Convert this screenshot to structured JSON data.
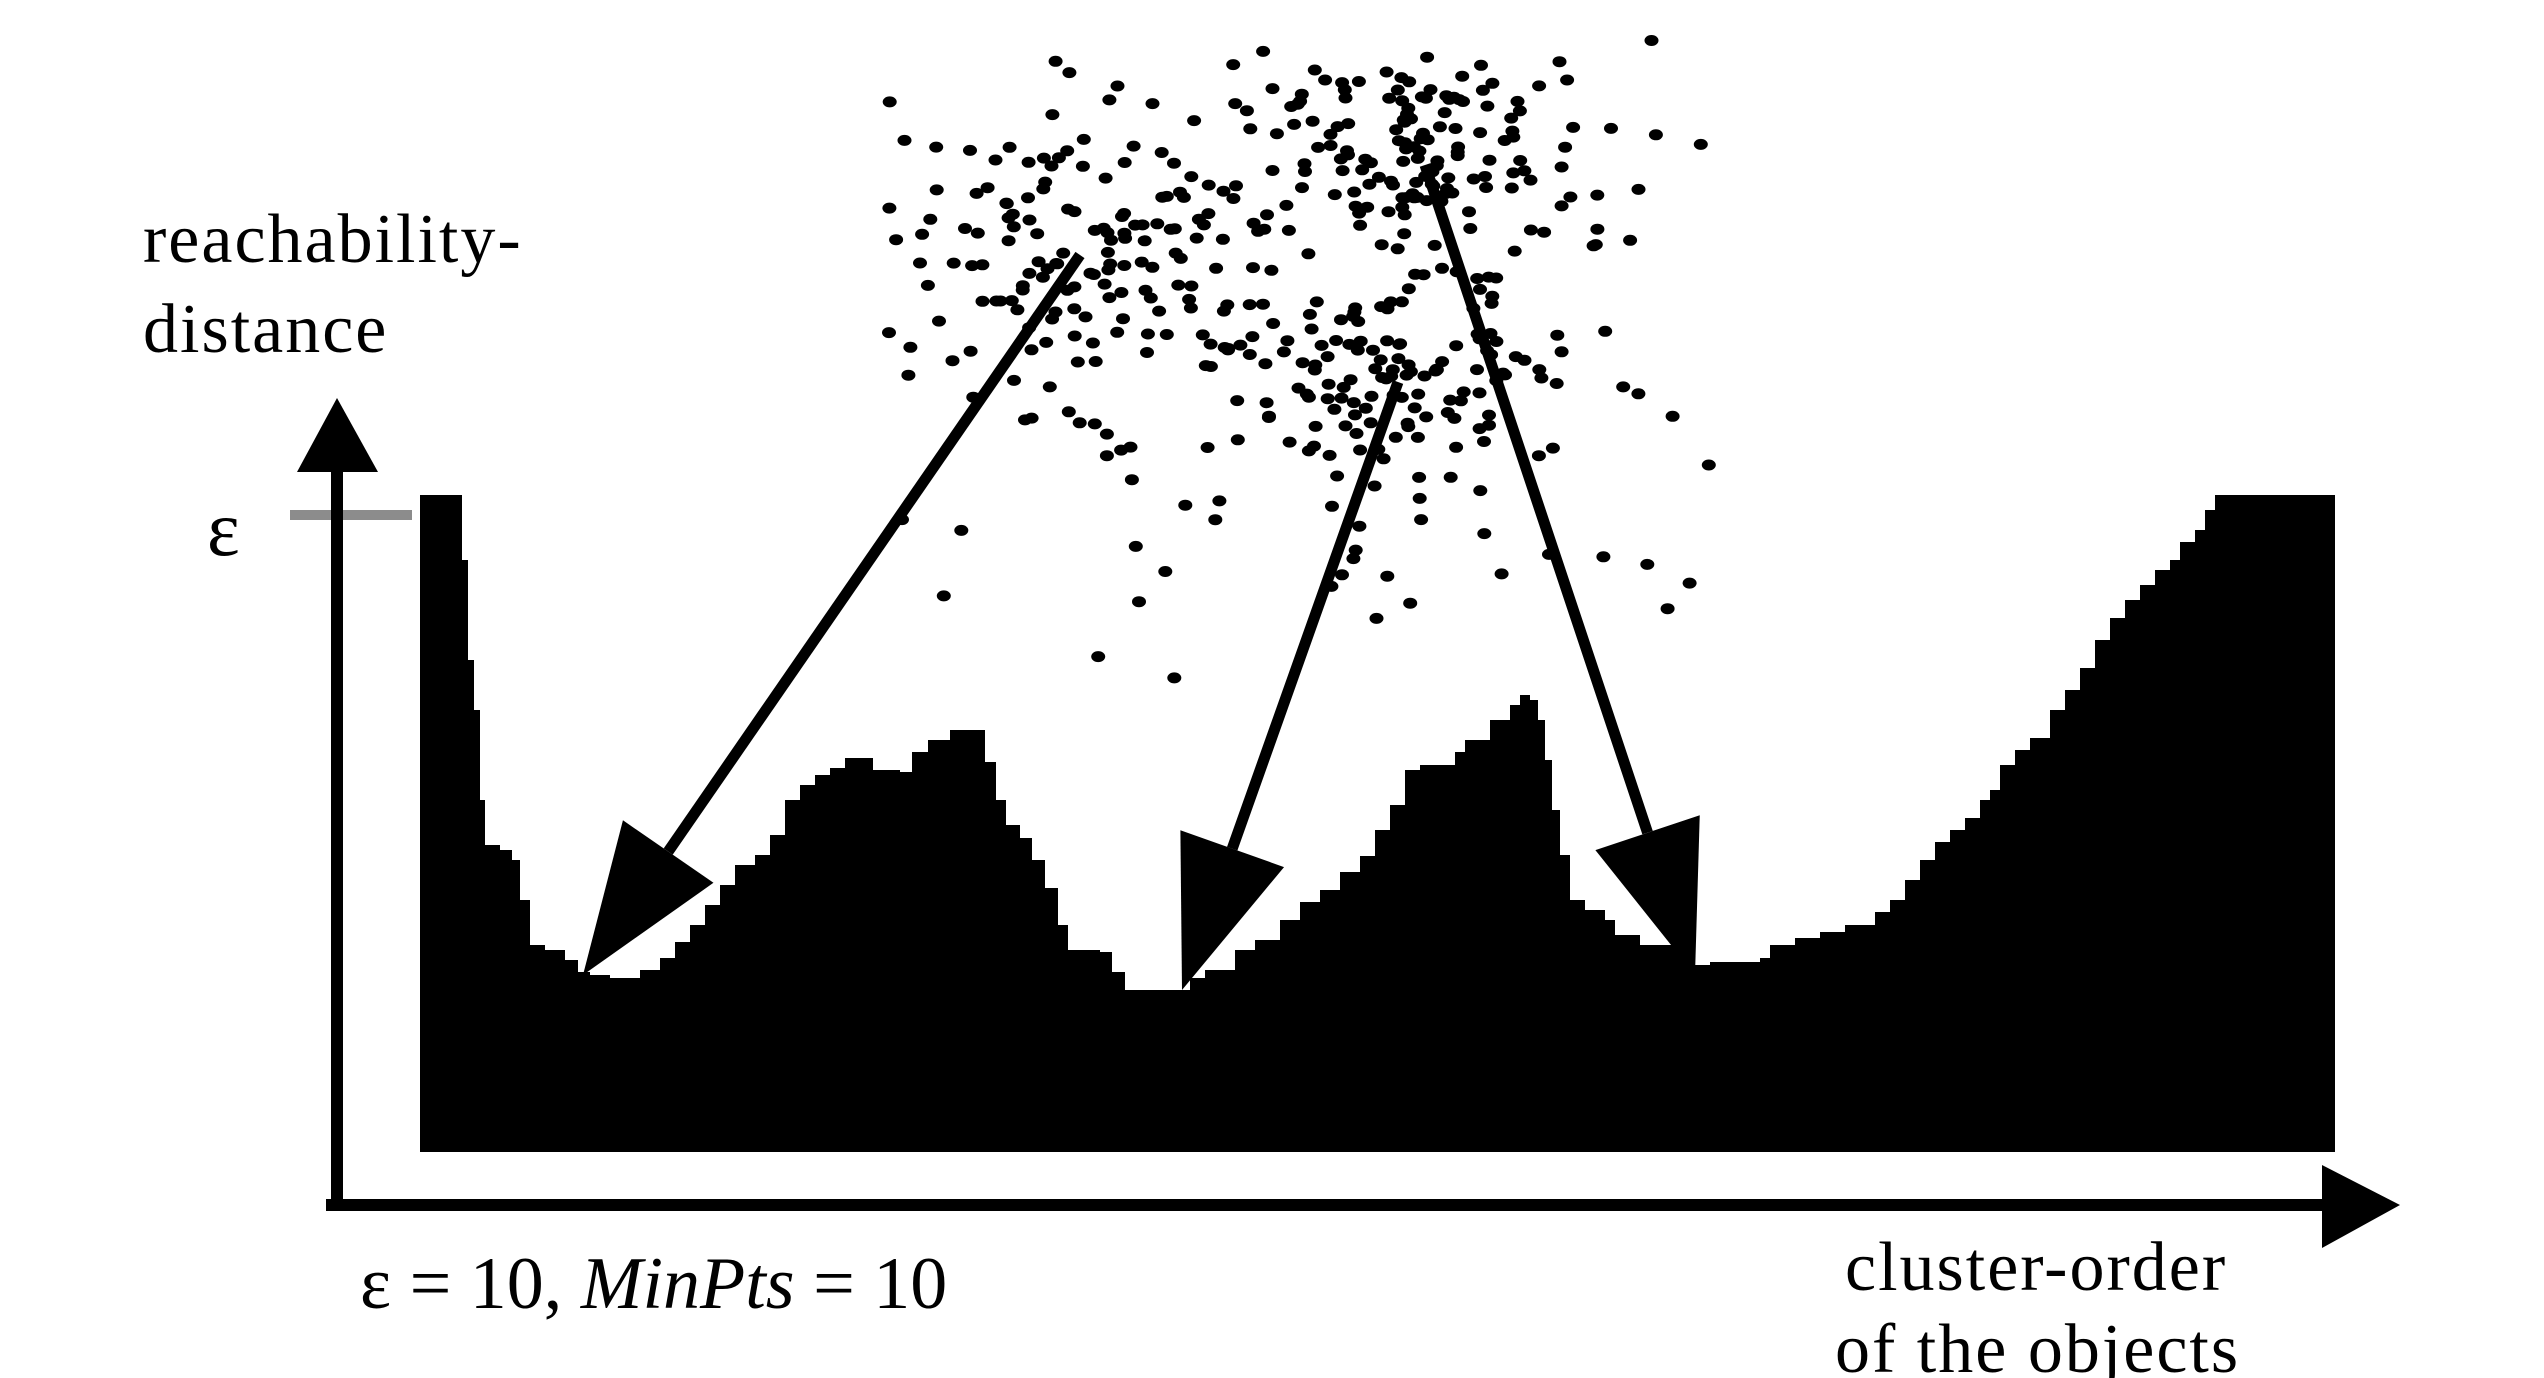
{
  "diagram": {
    "y_axis_label_lines": [
      "reachability-",
      "distance"
    ],
    "epsilon_tick_label": "ε",
    "parameters": {
      "eps_symbol": "ε",
      "eps_rest": " = 10, ",
      "minpts_name": "MinPts",
      "minpts_rest": " = 10"
    },
    "x_axis_label_lines": [
      "cluster-order",
      "of the objects"
    ],
    "colors": {
      "ink": "#000000",
      "epsilon_tick": "#8c8c8c",
      "background": "#ffffff"
    },
    "reachability_plot_note": "black filled reachability profile with three valleys, each linked by an arrow to a cluster in the point set above"
  }
}
